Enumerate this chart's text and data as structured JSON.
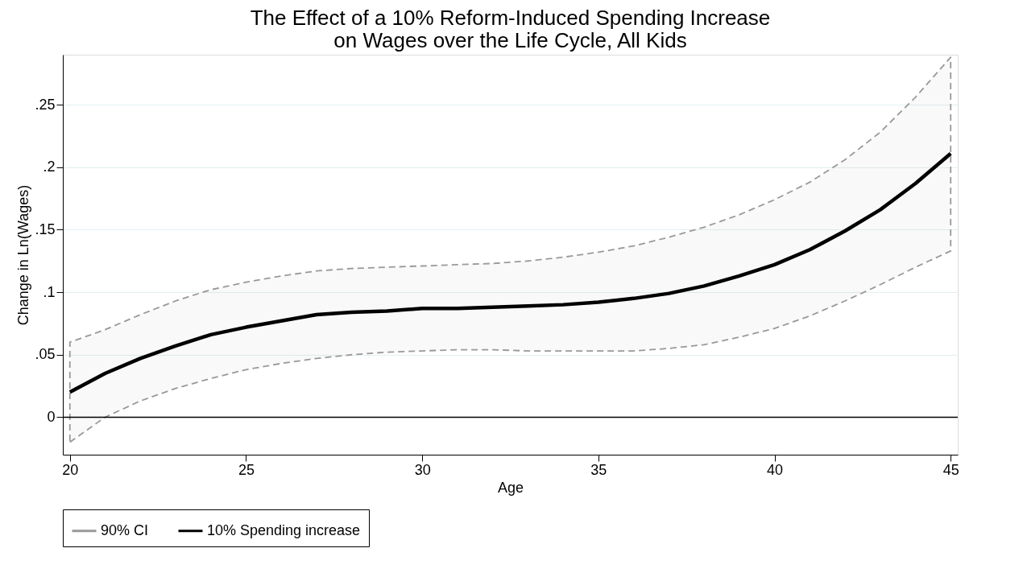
{
  "chart_data": {
    "type": "line",
    "title": "The Effect of a 10% Reform-Induced Spending Increase\non Wages over the Life Cycle, All Kids",
    "xlabel": "Age",
    "ylabel": "Change in Ln(Wages)",
    "x": [
      20,
      21,
      22,
      23,
      24,
      25,
      26,
      27,
      28,
      29,
      30,
      31,
      32,
      33,
      34,
      35,
      36,
      37,
      38,
      39,
      40,
      41,
      42,
      43,
      44,
      45
    ],
    "series": [
      {
        "name": "10% Spending increase",
        "color": "#000000",
        "values": [
          0.02,
          0.035,
          0.047,
          0.057,
          0.066,
          0.072,
          0.077,
          0.082,
          0.084,
          0.085,
          0.087,
          0.087,
          0.088,
          0.089,
          0.09,
          0.092,
          0.095,
          0.099,
          0.105,
          0.113,
          0.122,
          0.134,
          0.149,
          0.166,
          0.187,
          0.211
        ],
        "lower": [
          -0.02,
          0.0,
          0.013,
          0.023,
          0.031,
          0.038,
          0.043,
          0.047,
          0.05,
          0.052,
          0.053,
          0.054,
          0.054,
          0.053,
          0.053,
          0.053,
          0.053,
          0.055,
          0.058,
          0.064,
          0.071,
          0.081,
          0.093,
          0.106,
          0.12,
          0.133
        ],
        "upper": [
          0.06,
          0.07,
          0.082,
          0.093,
          0.102,
          0.108,
          0.113,
          0.117,
          0.119,
          0.12,
          0.121,
          0.122,
          0.123,
          0.125,
          0.128,
          0.132,
          0.137,
          0.144,
          0.152,
          0.162,
          0.174,
          0.188,
          0.206,
          0.228,
          0.256,
          0.288
        ]
      }
    ],
    "annotations": [
      "90% CI"
    ],
    "xlim": [
      19.8,
      45.2
    ],
    "xticks": [
      20,
      25,
      30,
      35,
      40,
      45
    ],
    "ylim": [
      -0.03,
      0.29
    ],
    "yticks": [
      {
        "value": 0,
        "label": "0"
      },
      {
        "value": 0.05,
        "label": ".05"
      },
      {
        "value": 0.1,
        "label": ".1"
      },
      {
        "value": 0.15,
        "label": ".15"
      },
      {
        "value": 0.2,
        "label": ".2"
      },
      {
        "value": 0.25,
        "label": ".25"
      }
    ],
    "ref_lines": [
      {
        "axis": "y",
        "value": 0,
        "color": "#000000"
      }
    ],
    "grid": "y",
    "legend": "bottom",
    "line_style": "solid"
  }
}
